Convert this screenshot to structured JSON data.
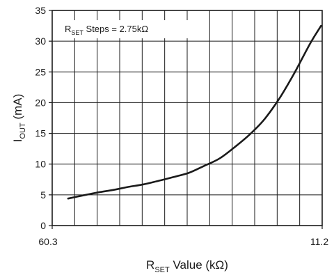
{
  "chart_data": {
    "type": "line",
    "title": "",
    "ylabel": {
      "main": "I",
      "sub": "OUT",
      "suffix": " (mA)"
    },
    "xlabel": {
      "main": "R",
      "sub": "SET",
      "suffix": " Value (kΩ)"
    },
    "annotation": {
      "main": "R",
      "sub": "SET",
      "suffix": " Steps = 2.75kΩ"
    },
    "x_tick_labels": [
      "60.3",
      "11.2"
    ],
    "y_ticks": [
      0,
      5,
      10,
      15,
      20,
      25,
      30,
      35
    ],
    "ylim": [
      0,
      35
    ],
    "xlim": [
      60.3,
      11.2
    ],
    "x_gridlines": 12,
    "grid": true,
    "series": [
      {
        "line_color": "#1a1a1a",
        "x": [
          57.4,
          54.7,
          51.9,
          49.2,
          46.4,
          43.7,
          40.9,
          38.2,
          35.4,
          32.7,
          29.9,
          27.2,
          24.4,
          21.7,
          18.9,
          16.2,
          13.4,
          11.4
        ],
        "y": [
          4.4,
          4.9,
          5.4,
          5.8,
          6.3,
          6.7,
          7.3,
          7.9,
          8.6,
          9.7,
          10.9,
          12.7,
          14.8,
          17.3,
          20.8,
          24.9,
          29.6,
          32.5
        ]
      }
    ]
  }
}
